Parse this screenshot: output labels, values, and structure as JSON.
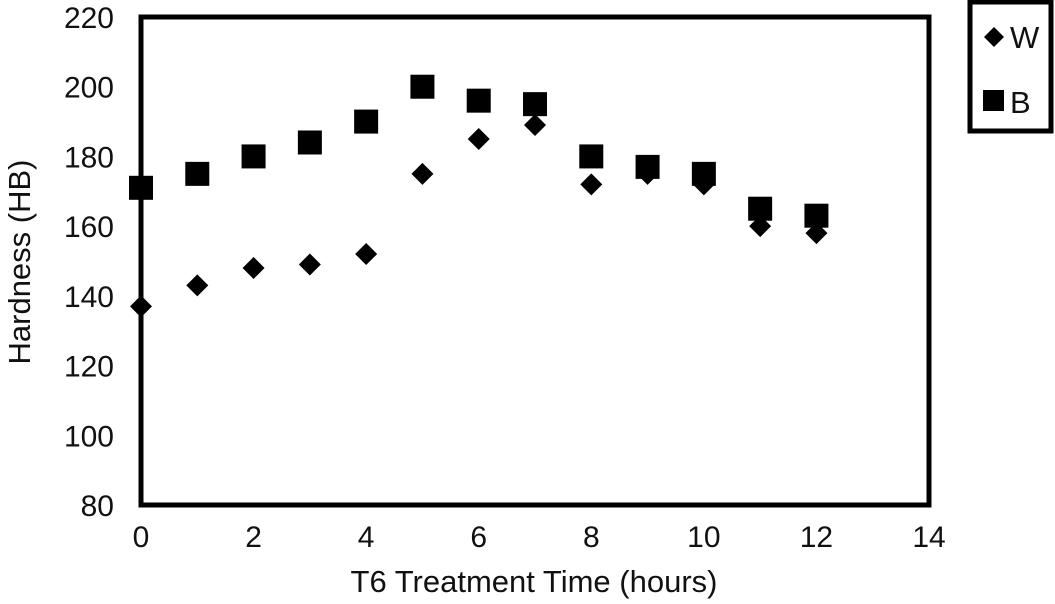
{
  "chart_data": {
    "type": "scatter",
    "title": "",
    "xlabel": "T6 Treatment Time (hours)",
    "ylabel": "Hardness (HB)",
    "xlim": [
      0,
      14
    ],
    "ylim": [
      80,
      220
    ],
    "xticks": [
      0,
      2,
      4,
      6,
      8,
      10,
      12,
      14
    ],
    "yticks": [
      80,
      100,
      120,
      140,
      160,
      180,
      200,
      220
    ],
    "grid": false,
    "legend_position": "outside top-right",
    "series": [
      {
        "name": "W",
        "marker": "diamond",
        "color": "#000000",
        "x": [
          0,
          1,
          2,
          3,
          4,
          5,
          6,
          7,
          8,
          9,
          10,
          11,
          12
        ],
        "y": [
          137,
          143,
          148,
          149,
          152,
          175,
          185,
          189,
          172,
          175,
          172,
          160,
          158
        ]
      },
      {
        "name": "B",
        "marker": "square",
        "color": "#000000",
        "x": [
          0,
          1,
          2,
          3,
          4,
          5,
          6,
          7,
          8,
          9,
          10,
          11,
          12
        ],
        "y": [
          171,
          175,
          180,
          184,
          190,
          200,
          196,
          195,
          180,
          177,
          175,
          165,
          163
        ]
      }
    ]
  }
}
